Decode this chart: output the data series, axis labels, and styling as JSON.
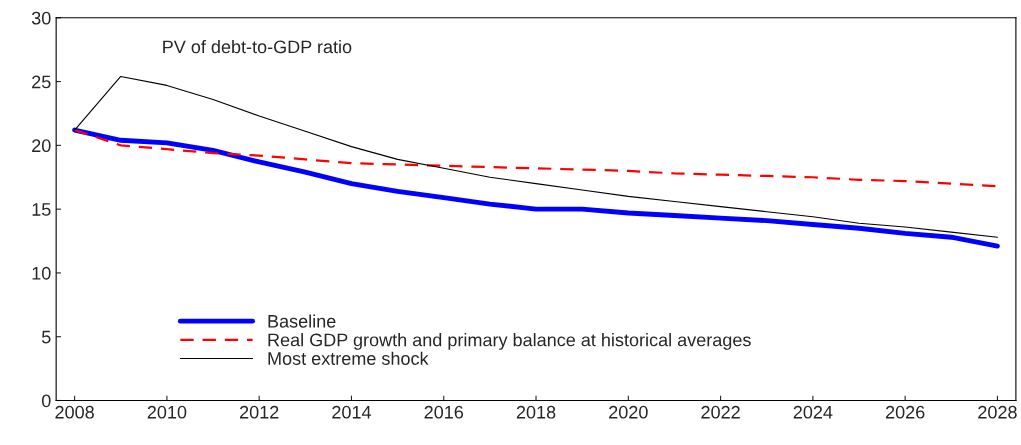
{
  "chart_data": {
    "type": "line",
    "title": "PV of debt-to-GDP ratio",
    "x": [
      2008,
      2009,
      2010,
      2011,
      2012,
      2013,
      2014,
      2015,
      2016,
      2017,
      2018,
      2019,
      2020,
      2021,
      2022,
      2023,
      2024,
      2025,
      2026,
      2027,
      2028
    ],
    "series": [
      {
        "name": "Baseline",
        "color": "#0000ff",
        "line_style": "solid",
        "values": [
          21.2,
          20.4,
          20.2,
          19.6,
          18.7,
          17.9,
          17.0,
          16.4,
          15.9,
          15.4,
          15.0,
          15.0,
          14.7,
          14.5,
          14.3,
          14.1,
          13.8,
          13.5,
          13.1,
          12.8,
          12.1
        ]
      },
      {
        "name": "Real GDP growth and primary balance at historical averages",
        "color": "#ff0000",
        "line_style": "dashed",
        "values": [
          21.2,
          20.0,
          19.7,
          19.4,
          19.2,
          18.9,
          18.6,
          18.5,
          18.4,
          18.3,
          18.2,
          18.1,
          18.0,
          17.8,
          17.7,
          17.6,
          17.5,
          17.3,
          17.2,
          17.0,
          16.8
        ]
      },
      {
        "name": "Most extreme shock",
        "color": "#000000",
        "line_style": "solid",
        "values": [
          21.2,
          25.4,
          24.7,
          23.6,
          22.3,
          21.1,
          19.9,
          18.9,
          18.2,
          17.5,
          17.0,
          16.5,
          16.0,
          15.6,
          15.2,
          14.8,
          14.4,
          13.9,
          13.6,
          13.2,
          12.8
        ]
      }
    ],
    "xlim": [
      2007.6,
      2028.4
    ],
    "xticks": [
      2008,
      2010,
      2012,
      2014,
      2016,
      2018,
      2020,
      2022,
      2024,
      2026,
      2028
    ],
    "ylim": [
      0,
      30
    ],
    "yticks": [
      0,
      5,
      10,
      15,
      20,
      25,
      30
    ],
    "legend": "bottom left",
    "grid": false
  }
}
